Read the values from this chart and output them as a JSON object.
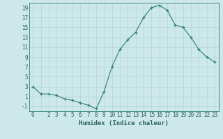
{
  "x": [
    0,
    1,
    2,
    3,
    4,
    5,
    6,
    7,
    8,
    9,
    10,
    11,
    12,
    13,
    14,
    15,
    16,
    17,
    18,
    19,
    20,
    21,
    22,
    23
  ],
  "y": [
    3.0,
    1.5,
    1.5,
    1.2,
    0.5,
    0.2,
    -0.3,
    -0.8,
    -1.5,
    2.0,
    7.0,
    10.5,
    12.5,
    14.0,
    17.0,
    19.0,
    19.5,
    18.5,
    15.5,
    15.0,
    13.0,
    10.5,
    9.0,
    8.0
  ],
  "xlabel": "Humidex (Indice chaleur)",
  "ylim": [
    -2,
    20
  ],
  "xlim": [
    -0.5,
    23.5
  ],
  "yticks": [
    -1,
    1,
    3,
    5,
    7,
    9,
    11,
    13,
    15,
    17,
    19
  ],
  "xticks": [
    0,
    1,
    2,
    3,
    4,
    5,
    6,
    7,
    8,
    9,
    10,
    11,
    12,
    13,
    14,
    15,
    16,
    17,
    18,
    19,
    20,
    21,
    22,
    23
  ],
  "xtick_labels": [
    "0",
    "",
    "2",
    "3",
    "4",
    "5",
    "6",
    "7",
    "8",
    "9",
    "10",
    "11",
    "12",
    "13",
    "14",
    "15",
    "16",
    "17",
    "18",
    "19",
    "20",
    "21",
    "22",
    "23"
  ],
  "line_color": "#2e7d6e",
  "marker": "+",
  "bg_color": "#cce8e8",
  "grid_color": "#b8d8d8",
  "font_color": "#2e6060",
  "xlabel_fontsize": 6.5,
  "tick_fontsize": 5.5
}
